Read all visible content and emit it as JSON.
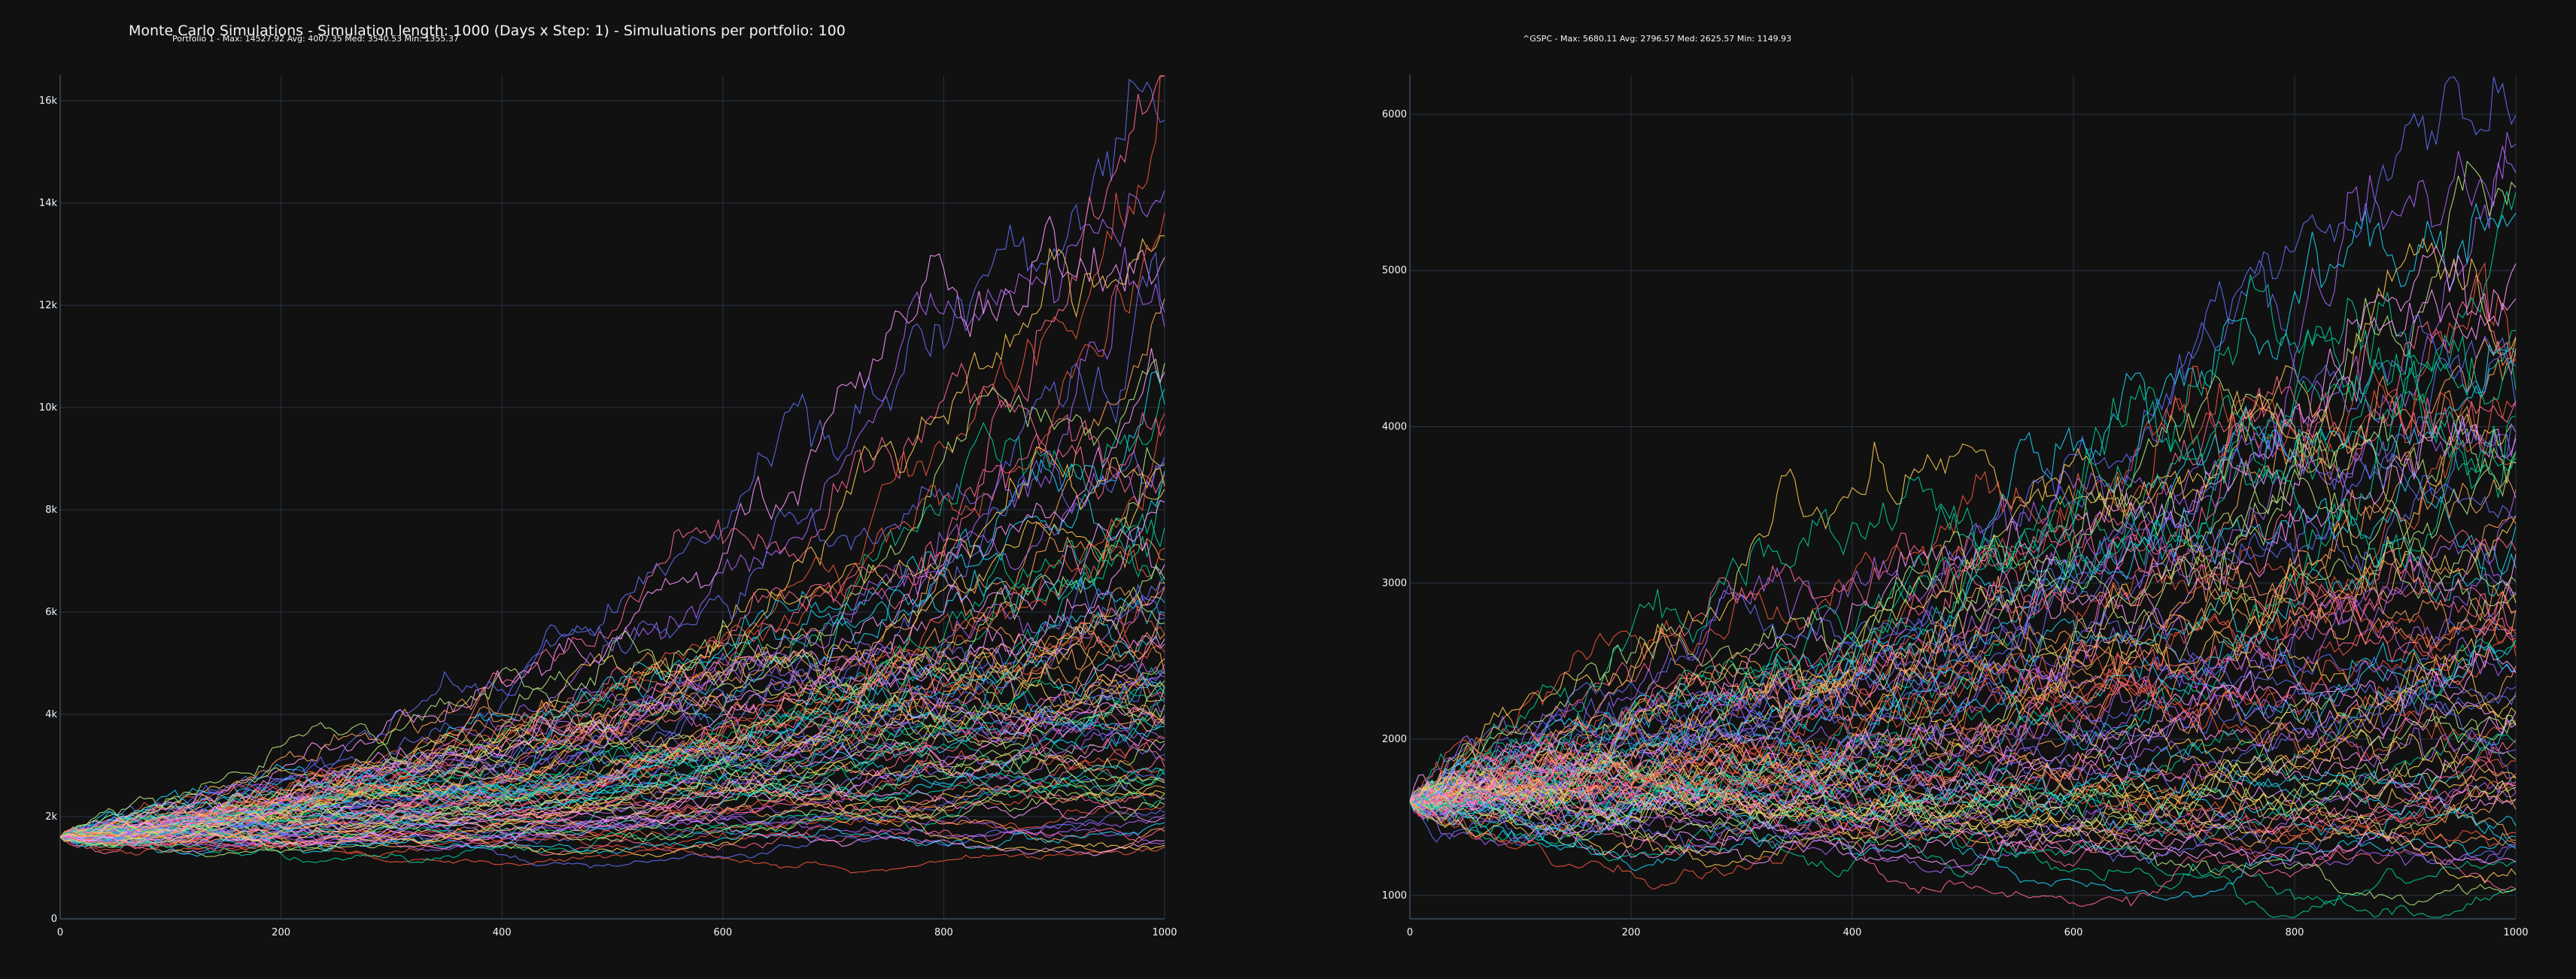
{
  "title": "Monte Carlo Simulations - Simulation length: 1000 (Days x Step: 1) - Simuluations per portfolio: 100",
  "colors": {
    "background": "#111111",
    "grid": "#283442",
    "text": "#f2f5fa",
    "palette": [
      "#636efa",
      "#EF553B",
      "#00cc96",
      "#ab63fa",
      "#FFA15A",
      "#19d3f3",
      "#FF6692",
      "#B6E880",
      "#FF97FF",
      "#FECB52"
    ]
  },
  "chart_data": [
    {
      "type": "line",
      "title": "Portfolio 1 - Max: 14527.92 Avg: 4007.35 Med: 3540.53 Min: 1355.37",
      "xlabel": "",
      "ylabel": "",
      "xlim": [
        0,
        1000
      ],
      "ylim": [
        0,
        16500
      ],
      "xticks": [
        0,
        200,
        400,
        600,
        800,
        1000
      ],
      "xtick_labels": [
        "0",
        "200",
        "400",
        "600",
        "800",
        "1000"
      ],
      "yticks": [
        0,
        2000,
        4000,
        6000,
        8000,
        10000,
        12000,
        14000,
        16000
      ],
      "ytick_labels": [
        "0",
        "2k",
        "4k",
        "6k",
        "8k",
        "10k",
        "12k",
        "14k",
        "16k"
      ],
      "grid": true,
      "start_value": 1600,
      "n_series": 100,
      "n_steps": 1000,
      "final_values_sample": [
        14400,
        13200,
        12100,
        11900,
        10300,
        9900,
        9200,
        8600,
        8100,
        7600,
        7200,
        6800,
        6400,
        6000,
        5700,
        5400,
        5100,
        4800,
        4500,
        4200,
        4000,
        3800,
        3600,
        3400,
        3200,
        3000,
        2800,
        2600,
        2400,
        2200,
        2000,
        1800,
        1600,
        1400
      ],
      "max": 14527.92,
      "avg": 4007.35,
      "med": 3540.53,
      "min": 1355.37
    },
    {
      "type": "line",
      "title": "^GSPC - Max: 5680.11 Avg: 2796.57 Med: 2625.57 Min: 1149.93",
      "xlabel": "",
      "ylabel": "",
      "xlim": [
        0,
        1000
      ],
      "ylim": [
        850,
        6250
      ],
      "xticks": [
        0,
        200,
        400,
        600,
        800,
        1000
      ],
      "xtick_labels": [
        "0",
        "200",
        "400",
        "600",
        "800",
        "1000"
      ],
      "yticks": [
        1000,
        2000,
        3000,
        4000,
        5000,
        6000
      ],
      "ytick_labels": [
        "1000",
        "2000",
        "3000",
        "4000",
        "5000",
        "6000"
      ],
      "grid": true,
      "start_value": 1600,
      "n_series": 100,
      "n_steps": 1000,
      "final_values_sample": [
        5700,
        5300,
        5000,
        4800,
        4600,
        4400,
        4200,
        4000,
        3800,
        3600,
        3400,
        3200,
        3000,
        2900,
        2800,
        2700,
        2600,
        2500,
        2400,
        2300,
        2200,
        2100,
        2000,
        1900,
        1800,
        1700,
        1600,
        1500,
        1400,
        1300,
        1200,
        1150
      ],
      "max": 5680.11,
      "avg": 2796.57,
      "med": 2625.57,
      "min": 1149.93
    }
  ]
}
